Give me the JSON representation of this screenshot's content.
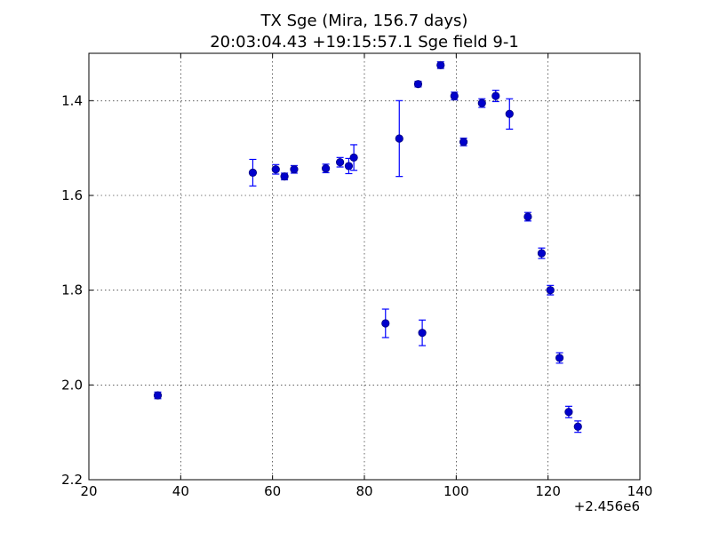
{
  "chart_data": {
    "type": "scatter",
    "title_line1": "TX Sge (Mira, 156.7 days)",
    "title_line2": "20:03:04.43 +19:15:57.1 Sge field 9-1",
    "xlabel": "",
    "ylabel": "",
    "x_offset_label": "+2.456e6",
    "xlim": [
      20,
      140
    ],
    "ylim": [
      2.2,
      1.3
    ],
    "y_inverted": true,
    "grid": true,
    "x_ticks": [
      20,
      40,
      60,
      80,
      100,
      120,
      140
    ],
    "x_tick_labels": [
      "20",
      "40",
      "60",
      "80",
      "100",
      "120",
      "140"
    ],
    "y_ticks": [
      1.4,
      1.6,
      1.8,
      2.0,
      2.2
    ],
    "y_tick_labels": [
      "1.4",
      "1.6",
      "1.8",
      "2.0",
      "2.2"
    ],
    "marker_color": "#0000cc",
    "errorbar_color": "#0000ff",
    "points": [
      {
        "x": 35.0,
        "y": 2.022,
        "err": 0.007
      },
      {
        "x": 55.7,
        "y": 1.552,
        "err": 0.028
      },
      {
        "x": 60.7,
        "y": 1.545,
        "err": 0.01
      },
      {
        "x": 62.6,
        "y": 1.56,
        "err": 0.007
      },
      {
        "x": 64.7,
        "y": 1.545,
        "err": 0.008
      },
      {
        "x": 71.6,
        "y": 1.543,
        "err": 0.009
      },
      {
        "x": 74.7,
        "y": 1.53,
        "err": 0.01
      },
      {
        "x": 76.6,
        "y": 1.538,
        "err": 0.016
      },
      {
        "x": 77.7,
        "y": 1.52,
        "err": 0.027
      },
      {
        "x": 84.6,
        "y": 1.87,
        "err": 0.03
      },
      {
        "x": 87.6,
        "y": 1.48,
        "err": 0.08
      },
      {
        "x": 91.7,
        "y": 1.365,
        "err": 0.006
      },
      {
        "x": 92.6,
        "y": 1.89,
        "err": 0.027
      },
      {
        "x": 96.6,
        "y": 1.325,
        "err": 0.007
      },
      {
        "x": 99.6,
        "y": 1.39,
        "err": 0.008
      },
      {
        "x": 101.6,
        "y": 1.487,
        "err": 0.008
      },
      {
        "x": 105.6,
        "y": 1.405,
        "err": 0.009
      },
      {
        "x": 108.6,
        "y": 1.39,
        "err": 0.012
      },
      {
        "x": 111.6,
        "y": 1.428,
        "err": 0.032
      },
      {
        "x": 115.6,
        "y": 1.645,
        "err": 0.009
      },
      {
        "x": 118.6,
        "y": 1.722,
        "err": 0.011
      },
      {
        "x": 120.5,
        "y": 1.8,
        "err": 0.01
      },
      {
        "x": 122.5,
        "y": 1.943,
        "err": 0.011
      },
      {
        "x": 124.5,
        "y": 2.057,
        "err": 0.012
      },
      {
        "x": 126.5,
        "y": 2.088,
        "err": 0.012
      }
    ]
  }
}
